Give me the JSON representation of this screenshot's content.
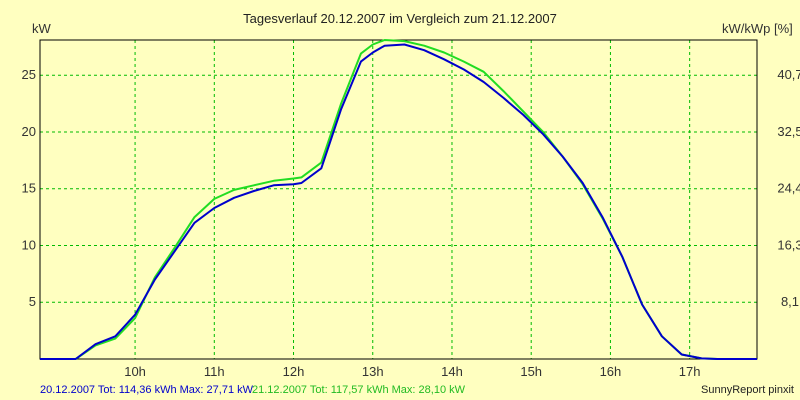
{
  "chart_data": {
    "type": "line",
    "title": "Tagesverlauf 20.12.2007 im Vergleich zum 21.12.2007",
    "ylabel_left": "kW",
    "ylabel_right": "kW/kWp [%]",
    "xlim": [
      8.8,
      17.85
    ],
    "ylim": [
      0,
      28.1
    ],
    "x_ticks": [
      {
        "value": 10,
        "label": "10h"
      },
      {
        "value": 11,
        "label": "11h"
      },
      {
        "value": 12,
        "label": "12h"
      },
      {
        "value": 13,
        "label": "13h"
      },
      {
        "value": 14,
        "label": "14h"
      },
      {
        "value": 15,
        "label": "15h"
      },
      {
        "value": 16,
        "label": "16h"
      },
      {
        "value": 17,
        "label": "17h"
      }
    ],
    "y_ticks_left": [
      {
        "value": 5,
        "label": "5"
      },
      {
        "value": 10,
        "label": "10"
      },
      {
        "value": 15,
        "label": "15"
      },
      {
        "value": 20,
        "label": "20"
      },
      {
        "value": 25,
        "label": "25"
      }
    ],
    "y_ticks_right": [
      {
        "value": 5,
        "label": "8,1"
      },
      {
        "value": 10,
        "label": "16,3"
      },
      {
        "value": 15,
        "label": "24,4"
      },
      {
        "value": 20,
        "label": "32,5"
      },
      {
        "value": 25,
        "label": "40,7"
      }
    ],
    "grid": true,
    "series": [
      {
        "name": "20.12.2007",
        "color": "#0000cc",
        "x": [
          8.8,
          9.05,
          9.25,
          9.5,
          9.75,
          10.0,
          10.25,
          10.5,
          10.75,
          11.0,
          11.25,
          11.5,
          11.75,
          12.0,
          12.1,
          12.35,
          12.6,
          12.85,
          13.0,
          13.15,
          13.4,
          13.65,
          13.9,
          14.15,
          14.4,
          14.65,
          14.9,
          15.15,
          15.4,
          15.65,
          15.9,
          16.15,
          16.4,
          16.65,
          16.9,
          17.15,
          17.35,
          17.6,
          17.85
        ],
        "y": [
          0,
          0,
          0,
          1.3,
          2.0,
          3.9,
          7.0,
          9.5,
          12.0,
          13.3,
          14.2,
          14.8,
          15.3,
          15.4,
          15.5,
          16.8,
          22.0,
          26.2,
          27.0,
          27.6,
          27.7,
          27.2,
          26.4,
          25.5,
          24.4,
          23.0,
          21.5,
          19.8,
          17.8,
          15.5,
          12.5,
          9.0,
          4.8,
          2.0,
          0.4,
          0.05,
          0,
          0,
          0
        ]
      },
      {
        "name": "21.12.2007",
        "color": "#22dd22",
        "x": [
          8.8,
          9.05,
          9.25,
          9.5,
          9.75,
          10.0,
          10.25,
          10.5,
          10.75,
          11.0,
          11.25,
          11.5,
          11.75,
          12.0,
          12.1,
          12.35,
          12.6,
          12.85,
          13.0,
          13.15,
          13.4,
          13.65,
          13.9,
          14.15,
          14.4,
          14.65,
          14.9,
          15.15,
          15.4,
          15.65,
          15.9,
          16.15,
          16.4,
          16.65,
          16.9,
          17.15,
          17.35,
          17.6,
          17.85
        ],
        "y": [
          0,
          0,
          0,
          1.2,
          1.8,
          3.6,
          7.2,
          9.8,
          12.5,
          14.1,
          14.9,
          15.3,
          15.7,
          15.9,
          16.0,
          17.3,
          22.5,
          26.9,
          27.7,
          28.1,
          28.0,
          27.6,
          27.0,
          26.2,
          25.3,
          23.6,
          21.8,
          20.0,
          17.8,
          15.4,
          12.4,
          9.0,
          4.8,
          2.0,
          0.4,
          0.05,
          0,
          0,
          0
        ]
      }
    ]
  },
  "footer": {
    "series1_text": "20.12.2007 Tot: 114,36 kWh Max: 27,71 kW",
    "series2_text": "21.12.2007 Tot: 117,57 kWh Max: 28,10 kW",
    "credit": "SunnyReport pinxit"
  },
  "colors": {
    "background": "#ffffc0",
    "grid": "#00bb00",
    "axis": "#000000"
  }
}
